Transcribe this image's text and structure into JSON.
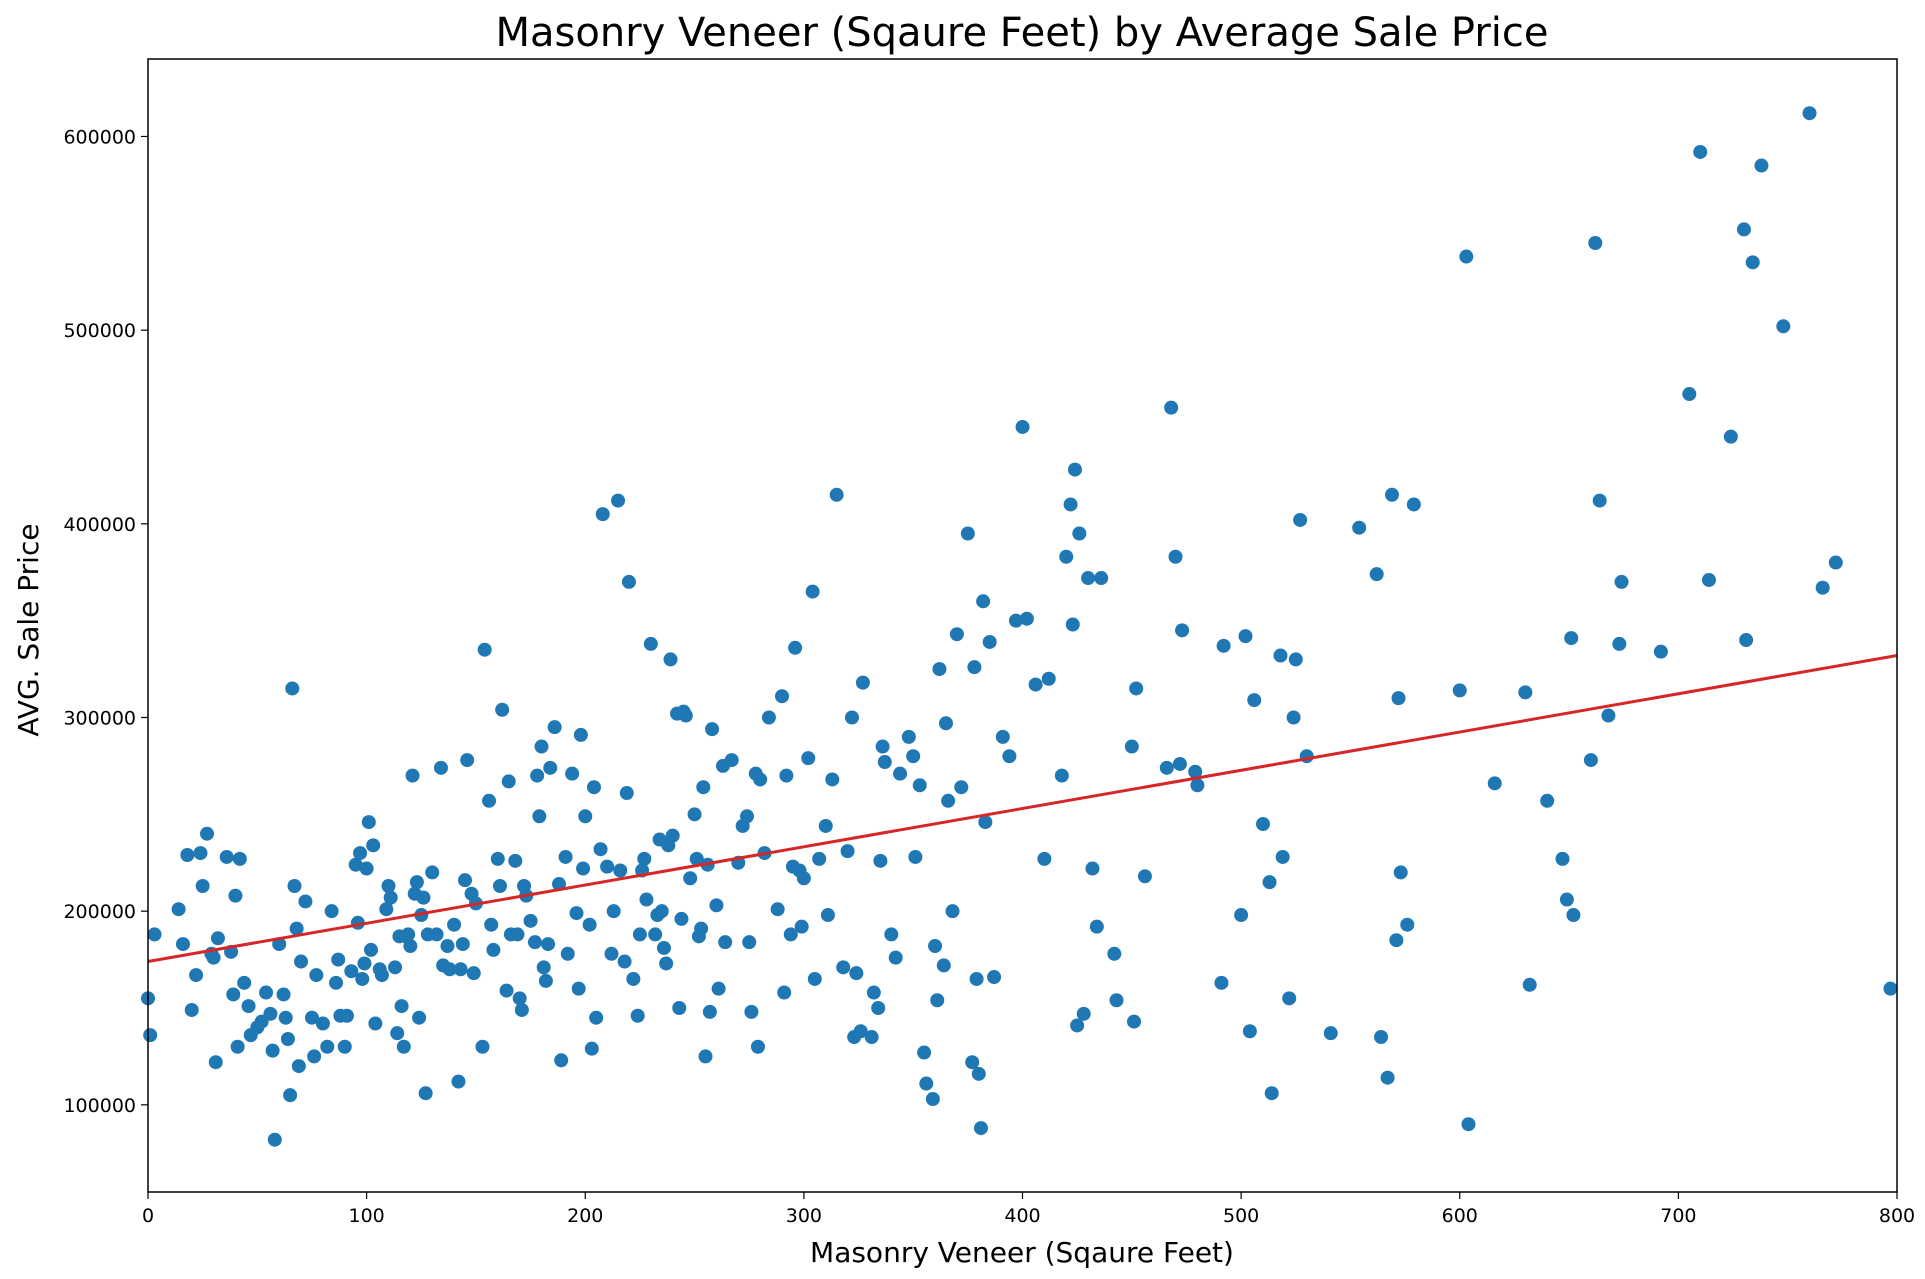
{
  "chart_data": {
    "type": "scatter",
    "title": "Masonry Veneer (Sqaure Feet) by Average Sale Price",
    "xlabel": "Masonry Veneer (Sqaure Feet)",
    "ylabel": "AVG. Sale Price",
    "xlim": [
      0,
      800
    ],
    "ylim": [
      55000,
      640000
    ],
    "xticks": [
      0,
      100,
      200,
      300,
      400,
      500,
      600,
      700,
      800
    ],
    "yticks": [
      100000,
      200000,
      300000,
      400000,
      500000,
      600000
    ],
    "grid": false,
    "colors": {
      "points": "#1f77b4",
      "trend": "#d62728"
    },
    "trend_line": {
      "x": [
        0,
        800
      ],
      "y": [
        174000,
        332000
      ]
    },
    "points": [
      [
        0,
        155000
      ],
      [
        1,
        136000
      ],
      [
        3,
        188000
      ],
      [
        14,
        201000
      ],
      [
        16,
        183000
      ],
      [
        18,
        229000
      ],
      [
        20,
        149000
      ],
      [
        22,
        167000
      ],
      [
        24,
        230000
      ],
      [
        25,
        213000
      ],
      [
        27,
        240000
      ],
      [
        29,
        178000
      ],
      [
        30,
        176000
      ],
      [
        31,
        122000
      ],
      [
        32,
        186000
      ],
      [
        36,
        228000
      ],
      [
        38,
        179000
      ],
      [
        39,
        157000
      ],
      [
        40,
        208000
      ],
      [
        41,
        130000
      ],
      [
        42,
        227000
      ],
      [
        44,
        163000
      ],
      [
        46,
        151000
      ],
      [
        47,
        136000
      ],
      [
        50,
        140000
      ],
      [
        52,
        143000
      ],
      [
        54,
        158000
      ],
      [
        56,
        147000
      ],
      [
        57,
        128000
      ],
      [
        58,
        82000
      ],
      [
        60,
        183000
      ],
      [
        62,
        157000
      ],
      [
        63,
        145000
      ],
      [
        64,
        134000
      ],
      [
        65,
        105000
      ],
      [
        66,
        315000
      ],
      [
        67,
        213000
      ],
      [
        68,
        191000
      ],
      [
        69,
        120000
      ],
      [
        70,
        174000
      ],
      [
        72,
        205000
      ],
      [
        75,
        145000
      ],
      [
        76,
        125000
      ],
      [
        77,
        167000
      ],
      [
        80,
        142000
      ],
      [
        82,
        130000
      ],
      [
        84,
        200000
      ],
      [
        86,
        163000
      ],
      [
        87,
        175000
      ],
      [
        88,
        146000
      ],
      [
        90,
        130000
      ],
      [
        91,
        146000
      ],
      [
        93,
        169000
      ],
      [
        95,
        224000
      ],
      [
        96,
        194000
      ],
      [
        97,
        230000
      ],
      [
        98,
        165000
      ],
      [
        99,
        173000
      ],
      [
        100,
        222000
      ],
      [
        101,
        246000
      ],
      [
        102,
        180000
      ],
      [
        103,
        234000
      ],
      [
        104,
        142000
      ],
      [
        106,
        170000
      ],
      [
        107,
        167000
      ],
      [
        109,
        201000
      ],
      [
        110,
        213000
      ],
      [
        111,
        207000
      ],
      [
        113,
        171000
      ],
      [
        114,
        137000
      ],
      [
        115,
        187000
      ],
      [
        116,
        151000
      ],
      [
        117,
        130000
      ],
      [
        118,
        187000
      ],
      [
        119,
        188000
      ],
      [
        120,
        182000
      ],
      [
        121,
        270000
      ],
      [
        122,
        209000
      ],
      [
        123,
        215000
      ],
      [
        124,
        145000
      ],
      [
        125,
        198000
      ],
      [
        126,
        207000
      ],
      [
        127,
        106000
      ],
      [
        128,
        188000
      ],
      [
        130,
        220000
      ],
      [
        132,
        188000
      ],
      [
        134,
        274000
      ],
      [
        135,
        172000
      ],
      [
        137,
        182000
      ],
      [
        138,
        170000
      ],
      [
        140,
        193000
      ],
      [
        142,
        112000
      ],
      [
        143,
        170000
      ],
      [
        144,
        183000
      ],
      [
        145,
        216000
      ],
      [
        146,
        278000
      ],
      [
        148,
        209000
      ],
      [
        149,
        168000
      ],
      [
        150,
        204000
      ],
      [
        153,
        130000
      ],
      [
        154,
        335000
      ],
      [
        156,
        257000
      ],
      [
        157,
        193000
      ],
      [
        158,
        180000
      ],
      [
        160,
        227000
      ],
      [
        161,
        213000
      ],
      [
        162,
        304000
      ],
      [
        164,
        159000
      ],
      [
        165,
        267000
      ],
      [
        166,
        188000
      ],
      [
        168,
        226000
      ],
      [
        169,
        188000
      ],
      [
        170,
        155000
      ],
      [
        171,
        149000
      ],
      [
        172,
        213000
      ],
      [
        173,
        208000
      ],
      [
        175,
        195000
      ],
      [
        177,
        184000
      ],
      [
        178,
        270000
      ],
      [
        179,
        249000
      ],
      [
        180,
        285000
      ],
      [
        181,
        171000
      ],
      [
        182,
        164000
      ],
      [
        183,
        183000
      ],
      [
        184,
        274000
      ],
      [
        186,
        295000
      ],
      [
        188,
        214000
      ],
      [
        189,
        123000
      ],
      [
        191,
        228000
      ],
      [
        192,
        178000
      ],
      [
        194,
        271000
      ],
      [
        196,
        199000
      ],
      [
        197,
        160000
      ],
      [
        198,
        291000
      ],
      [
        199,
        222000
      ],
      [
        200,
        249000
      ],
      [
        202,
        193000
      ],
      [
        203,
        129000
      ],
      [
        204,
        264000
      ],
      [
        205,
        145000
      ],
      [
        207,
        232000
      ],
      [
        208,
        405000
      ],
      [
        210,
        223000
      ],
      [
        212,
        178000
      ],
      [
        213,
        200000
      ],
      [
        215,
        412000
      ],
      [
        216,
        221000
      ],
      [
        218,
        174000
      ],
      [
        219,
        261000
      ],
      [
        220,
        370000
      ],
      [
        222,
        165000
      ],
      [
        224,
        146000
      ],
      [
        225,
        188000
      ],
      [
        226,
        221000
      ],
      [
        227,
        227000
      ],
      [
        228,
        206000
      ],
      [
        230,
        338000
      ],
      [
        232,
        188000
      ],
      [
        233,
        198000
      ],
      [
        234,
        237000
      ],
      [
        235,
        200000
      ],
      [
        236,
        181000
      ],
      [
        237,
        173000
      ],
      [
        238,
        234000
      ],
      [
        239,
        330000
      ],
      [
        240,
        239000
      ],
      [
        242,
        302000
      ],
      [
        243,
        150000
      ],
      [
        244,
        196000
      ],
      [
        245,
        303000
      ],
      [
        246,
        301000
      ],
      [
        248,
        217000
      ],
      [
        250,
        250000
      ],
      [
        251,
        227000
      ],
      [
        252,
        187000
      ],
      [
        253,
        191000
      ],
      [
        254,
        264000
      ],
      [
        255,
        125000
      ],
      [
        256,
        224000
      ],
      [
        257,
        148000
      ],
      [
        258,
        294000
      ],
      [
        260,
        203000
      ],
      [
        261,
        160000
      ],
      [
        263,
        275000
      ],
      [
        264,
        184000
      ],
      [
        267,
        278000
      ],
      [
        270,
        225000
      ],
      [
        272,
        244000
      ],
      [
        274,
        249000
      ],
      [
        275,
        184000
      ],
      [
        276,
        148000
      ],
      [
        278,
        271000
      ],
      [
        279,
        130000
      ],
      [
        280,
        268000
      ],
      [
        282,
        230000
      ],
      [
        284,
        300000
      ],
      [
        288,
        201000
      ],
      [
        290,
        311000
      ],
      [
        291,
        158000
      ],
      [
        292,
        270000
      ],
      [
        294,
        188000
      ],
      [
        295,
        223000
      ],
      [
        296,
        336000
      ],
      [
        298,
        221000
      ],
      [
        299,
        192000
      ],
      [
        300,
        217000
      ],
      [
        302,
        279000
      ],
      [
        304,
        365000
      ],
      [
        305,
        165000
      ],
      [
        307,
        227000
      ],
      [
        310,
        244000
      ],
      [
        311,
        198000
      ],
      [
        313,
        268000
      ],
      [
        315,
        415000
      ],
      [
        318,
        171000
      ],
      [
        320,
        231000
      ],
      [
        322,
        300000
      ],
      [
        323,
        135000
      ],
      [
        324,
        168000
      ],
      [
        326,
        138000
      ],
      [
        327,
        318000
      ],
      [
        331,
        135000
      ],
      [
        332,
        158000
      ],
      [
        334,
        150000
      ],
      [
        335,
        226000
      ],
      [
        336,
        285000
      ],
      [
        337,
        277000
      ],
      [
        340,
        188000
      ],
      [
        342,
        176000
      ],
      [
        344,
        271000
      ],
      [
        348,
        290000
      ],
      [
        350,
        280000
      ],
      [
        351,
        228000
      ],
      [
        353,
        265000
      ],
      [
        355,
        127000
      ],
      [
        356,
        111000
      ],
      [
        359,
        103000
      ],
      [
        360,
        182000
      ],
      [
        361,
        154000
      ],
      [
        362,
        325000
      ],
      [
        364,
        172000
      ],
      [
        365,
        297000
      ],
      [
        366,
        257000
      ],
      [
        368,
        200000
      ],
      [
        370,
        343000
      ],
      [
        372,
        264000
      ],
      [
        375,
        395000
      ],
      [
        377,
        122000
      ],
      [
        378,
        326000
      ],
      [
        379,
        165000
      ],
      [
        380,
        116000
      ],
      [
        381,
        88000
      ],
      [
        382,
        360000
      ],
      [
        383,
        246000
      ],
      [
        385,
        339000
      ],
      [
        387,
        166000
      ],
      [
        391,
        290000
      ],
      [
        394,
        280000
      ],
      [
        397,
        350000
      ],
      [
        400,
        450000
      ],
      [
        402,
        351000
      ],
      [
        406,
        317000
      ],
      [
        410,
        227000
      ],
      [
        412,
        320000
      ],
      [
        418,
        270000
      ],
      [
        420,
        383000
      ],
      [
        422,
        410000
      ],
      [
        423,
        348000
      ],
      [
        424,
        428000
      ],
      [
        425,
        141000
      ],
      [
        426,
        395000
      ],
      [
        428,
        147000
      ],
      [
        430,
        372000
      ],
      [
        432,
        222000
      ],
      [
        434,
        192000
      ],
      [
        436,
        372000
      ],
      [
        442,
        178000
      ],
      [
        443,
        154000
      ],
      [
        450,
        285000
      ],
      [
        451,
        143000
      ],
      [
        452,
        315000
      ],
      [
        456,
        218000
      ],
      [
        466,
        274000
      ],
      [
        468,
        460000
      ],
      [
        470,
        383000
      ],
      [
        472,
        276000
      ],
      [
        473,
        345000
      ],
      [
        479,
        272000
      ],
      [
        480,
        265000
      ],
      [
        491,
        163000
      ],
      [
        492,
        337000
      ],
      [
        500,
        198000
      ],
      [
        502,
        342000
      ],
      [
        504,
        138000
      ],
      [
        506,
        309000
      ],
      [
        510,
        245000
      ],
      [
        513,
        215000
      ],
      [
        514,
        106000
      ],
      [
        518,
        332000
      ],
      [
        519,
        228000
      ],
      [
        522,
        155000
      ],
      [
        524,
        300000
      ],
      [
        525,
        330000
      ],
      [
        527,
        402000
      ],
      [
        530,
        280000
      ],
      [
        541,
        137000
      ],
      [
        554,
        398000
      ],
      [
        562,
        374000
      ],
      [
        564,
        135000
      ],
      [
        567,
        114000
      ],
      [
        569,
        415000
      ],
      [
        571,
        185000
      ],
      [
        572,
        310000
      ],
      [
        573,
        220000
      ],
      [
        576,
        193000
      ],
      [
        579,
        410000
      ],
      [
        600,
        314000
      ],
      [
        603,
        538000
      ],
      [
        604,
        90000
      ],
      [
        616,
        266000
      ],
      [
        630,
        313000
      ],
      [
        632,
        162000
      ],
      [
        640,
        257000
      ],
      [
        647,
        227000
      ],
      [
        649,
        206000
      ],
      [
        651,
        341000
      ],
      [
        652,
        198000
      ],
      [
        660,
        278000
      ],
      [
        662,
        545000
      ],
      [
        664,
        412000
      ],
      [
        668,
        301000
      ],
      [
        673,
        338000
      ],
      [
        674,
        370000
      ],
      [
        692,
        334000
      ],
      [
        705,
        467000
      ],
      [
        710,
        592000
      ],
      [
        714,
        371000
      ],
      [
        724,
        445000
      ],
      [
        730,
        552000
      ],
      [
        731,
        340000
      ],
      [
        734,
        535000
      ],
      [
        738,
        585000
      ],
      [
        748,
        502000
      ],
      [
        760,
        612000
      ],
      [
        766,
        367000
      ],
      [
        772,
        380000
      ],
      [
        797,
        160000
      ]
    ]
  }
}
